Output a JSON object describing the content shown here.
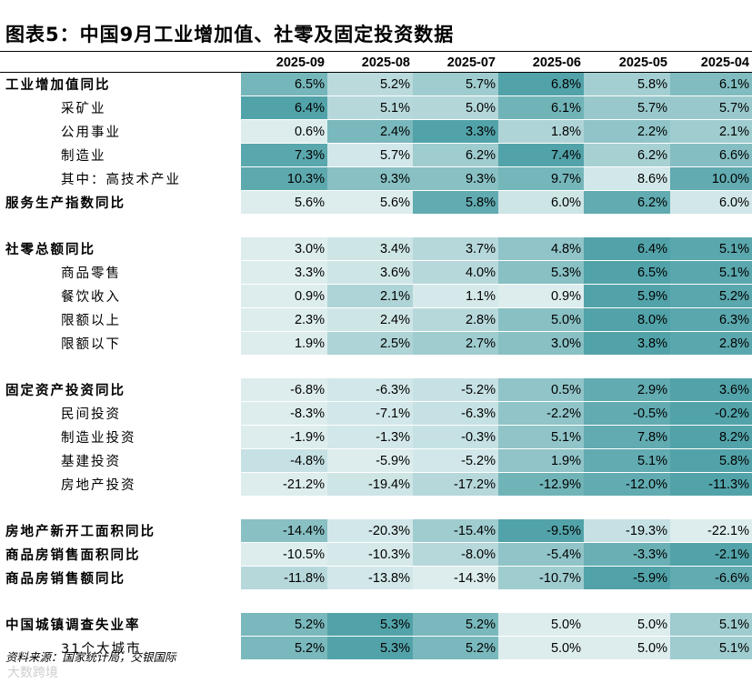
{
  "title": "图表5：中国9月工业增加值、社零及固定投资数据",
  "columns": [
    "2025-09",
    "2025-08",
    "2025-07",
    "2025-06",
    "2025-05",
    "2025-04"
  ],
  "sections": [
    {
      "rows": [
        {
          "label": "工业增加值同比",
          "style": "bold",
          "values": [
            "6.5%",
            "5.2%",
            "5.7%",
            "6.8%",
            "5.8%",
            "6.1%"
          ],
          "shades": [
            0.72,
            0.28,
            0.45,
            0.95,
            0.42,
            0.65
          ]
        },
        {
          "label": "采矿业",
          "style": "sub",
          "values": [
            "6.4%",
            "5.1%",
            "5.0%",
            "6.1%",
            "5.7%",
            "5.7%"
          ],
          "shades": [
            0.95,
            0.3,
            0.32,
            0.75,
            0.5,
            0.5
          ]
        },
        {
          "label": "公用事业",
          "style": "sub",
          "values": [
            "0.6%",
            "2.4%",
            "3.3%",
            "1.8%",
            "2.2%",
            "2.1%"
          ],
          "shades": [
            0.05,
            0.7,
            0.95,
            0.35,
            0.55,
            0.45
          ]
        },
        {
          "label": "制造业",
          "style": "sub",
          "values": [
            "7.3%",
            "5.7%",
            "6.2%",
            "7.4%",
            "6.2%",
            "6.6%"
          ],
          "shades": [
            0.9,
            0.12,
            0.45,
            0.95,
            0.4,
            0.62
          ]
        },
        {
          "label": "其中：高技术产业",
          "style": "sub",
          "values": [
            "10.3%",
            "9.3%",
            "9.3%",
            "9.7%",
            "8.6%",
            "10.0%"
          ],
          "shades": [
            0.88,
            0.6,
            0.6,
            0.72,
            0.12,
            0.85
          ]
        },
        {
          "label": "服务生产指数同比",
          "style": "bold",
          "values": [
            "5.6%",
            "5.6%",
            "5.8%",
            "6.0%",
            "6.2%",
            "6.0%"
          ],
          "shades": [
            0.05,
            0.05,
            0.85,
            0.15,
            0.85,
            0.12
          ]
        }
      ]
    },
    {
      "rows": [
        {
          "label": "社零总额同比",
          "style": "bold",
          "values": [
            "3.0%",
            "3.4%",
            "3.7%",
            "4.8%",
            "6.4%",
            "5.1%"
          ],
          "shades": [
            0.05,
            0.15,
            0.3,
            0.55,
            0.95,
            0.9
          ]
        },
        {
          "label": "商品零售",
          "style": "sub",
          "values": [
            "3.3%",
            "3.6%",
            "4.0%",
            "5.3%",
            "6.5%",
            "5.1%"
          ],
          "shades": [
            0.05,
            0.15,
            0.3,
            0.6,
            0.95,
            0.9
          ]
        },
        {
          "label": "餐饮收入",
          "style": "sub",
          "values": [
            "0.9%",
            "2.1%",
            "1.1%",
            "0.9%",
            "5.9%",
            "5.2%"
          ],
          "shades": [
            0.05,
            0.35,
            0.1,
            0.05,
            0.95,
            0.9
          ]
        },
        {
          "label": "限额以上",
          "style": "sub",
          "values": [
            "2.3%",
            "2.4%",
            "2.8%",
            "5.0%",
            "8.0%",
            "6.3%"
          ],
          "shades": [
            0.05,
            0.15,
            0.3,
            0.6,
            0.95,
            0.9
          ]
        },
        {
          "label": "限额以下",
          "style": "sub",
          "values": [
            "1.9%",
            "2.5%",
            "2.7%",
            "3.0%",
            "3.8%",
            "2.8%"
          ],
          "shades": [
            0.05,
            0.35,
            0.45,
            0.6,
            0.95,
            0.9
          ]
        }
      ]
    },
    {
      "rows": [
        {
          "label": "固定资产投资同比",
          "style": "bold",
          "values": [
            "-6.8%",
            "-6.3%",
            "-5.2%",
            "0.5%",
            "2.9%",
            "3.6%"
          ],
          "shades": [
            0.05,
            0.12,
            0.2,
            0.55,
            0.85,
            0.95
          ]
        },
        {
          "label": "民间投资",
          "style": "sub",
          "values": [
            "-8.3%",
            "-7.1%",
            "-6.3%",
            "-2.2%",
            "-0.5%",
            "-0.2%"
          ],
          "shades": [
            0.05,
            0.12,
            0.2,
            0.55,
            0.85,
            0.95
          ]
        },
        {
          "label": "制造业投资",
          "style": "sub",
          "values": [
            "-1.9%",
            "-1.3%",
            "-0.3%",
            "5.1%",
            "7.8%",
            "8.2%"
          ],
          "shades": [
            0.05,
            0.12,
            0.2,
            0.55,
            0.85,
            0.95
          ]
        },
        {
          "label": "基建投资",
          "style": "sub",
          "values": [
            "-4.8%",
            "-5.9%",
            "-5.2%",
            "1.9%",
            "5.1%",
            "5.8%"
          ],
          "shades": [
            0.2,
            0.05,
            0.12,
            0.55,
            0.85,
            0.95
          ]
        },
        {
          "label": "房地产投资",
          "style": "sub",
          "values": [
            "-21.2%",
            "-19.4%",
            "-17.2%",
            "-12.9%",
            "-12.0%",
            "-11.3%"
          ],
          "shades": [
            0.05,
            0.15,
            0.3,
            0.75,
            0.85,
            0.95
          ]
        }
      ]
    },
    {
      "rows": [
        {
          "label": "房地产新开工面积同比",
          "style": "bold",
          "values": [
            "-14.4%",
            "-20.3%",
            "-15.4%",
            "-9.5%",
            "-19.3%",
            "-22.1%"
          ],
          "shades": [
            0.6,
            0.12,
            0.45,
            0.95,
            0.2,
            0.05
          ]
        },
        {
          "label": "商品房销售面积同比",
          "style": "bold",
          "values": [
            "-10.5%",
            "-10.3%",
            "-8.0%",
            "-5.4%",
            "-3.3%",
            "-2.1%"
          ],
          "shades": [
            0.05,
            0.1,
            0.3,
            0.55,
            0.8,
            0.95
          ]
        },
        {
          "label": "商品房销售额同比",
          "style": "bold",
          "values": [
            "-11.8%",
            "-13.8%",
            "-14.3%",
            "-10.7%",
            "-5.9%",
            "-6.6%"
          ],
          "shades": [
            0.3,
            0.12,
            0.05,
            0.45,
            0.95,
            0.85
          ]
        }
      ]
    },
    {
      "rows": [
        {
          "label": "中国城镇调查失业率",
          "style": "bold",
          "values": [
            "5.2%",
            "5.3%",
            "5.2%",
            "5.0%",
            "5.0%",
            "5.1%"
          ],
          "shades": [
            0.7,
            0.95,
            0.7,
            0.05,
            0.05,
            0.45
          ]
        },
        {
          "label": "31个大城市",
          "style": "sub",
          "values": [
            "5.2%",
            "5.3%",
            "5.2%",
            "5.0%",
            "5.0%",
            "5.1%"
          ],
          "shades": [
            0.7,
            0.95,
            0.7,
            0.05,
            0.05,
            0.45
          ]
        }
      ]
    }
  ],
  "colors": {
    "low": "#e5f1f2",
    "high": "#4a9fa5"
  },
  "source": "资料来源：国家统计局，交银国际",
  "watermark": "大数跨境"
}
